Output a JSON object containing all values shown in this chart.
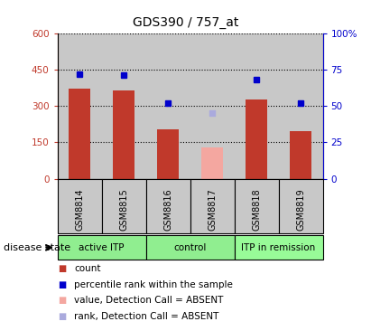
{
  "title": "GDS390 / 757_at",
  "samples": [
    "GSM8814",
    "GSM8815",
    "GSM8816",
    "GSM8817",
    "GSM8818",
    "GSM8819"
  ],
  "counts": [
    370,
    365,
    205,
    null,
    325,
    195
  ],
  "absent_counts": [
    null,
    null,
    null,
    130,
    null,
    null
  ],
  "percentile_ranks": [
    72,
    71,
    52,
    null,
    68,
    52
  ],
  "absent_ranks": [
    null,
    null,
    null,
    45,
    null,
    null
  ],
  "group_defs": [
    {
      "label": "active ITP",
      "start": 0,
      "end": 1,
      "color": "#90EE90"
    },
    {
      "label": "control",
      "start": 2,
      "end": 3,
      "color": "#90EE90"
    },
    {
      "label": "ITP in remission",
      "start": 4,
      "end": 5,
      "color": "#98FB98"
    }
  ],
  "ylim_left": [
    0,
    600
  ],
  "ylim_right": [
    0,
    100
  ],
  "yticks_left": [
    0,
    150,
    300,
    450,
    600
  ],
  "yticks_right": [
    0,
    25,
    50,
    75,
    100
  ],
  "bar_color": "#C0392B",
  "absent_bar_color": "#F4A7A0",
  "rank_color": "#0000CC",
  "absent_rank_color": "#AAAADD",
  "grid_color": "black",
  "bg_color": "#C8C8C8",
  "bar_width": 0.5,
  "legend_items": [
    {
      "color": "#C0392B",
      "label": "count"
    },
    {
      "color": "#0000CC",
      "label": "percentile rank within the sample"
    },
    {
      "color": "#F4A7A0",
      "label": "value, Detection Call = ABSENT"
    },
    {
      "color": "#AAAADD",
      "label": "rank, Detection Call = ABSENT"
    }
  ]
}
